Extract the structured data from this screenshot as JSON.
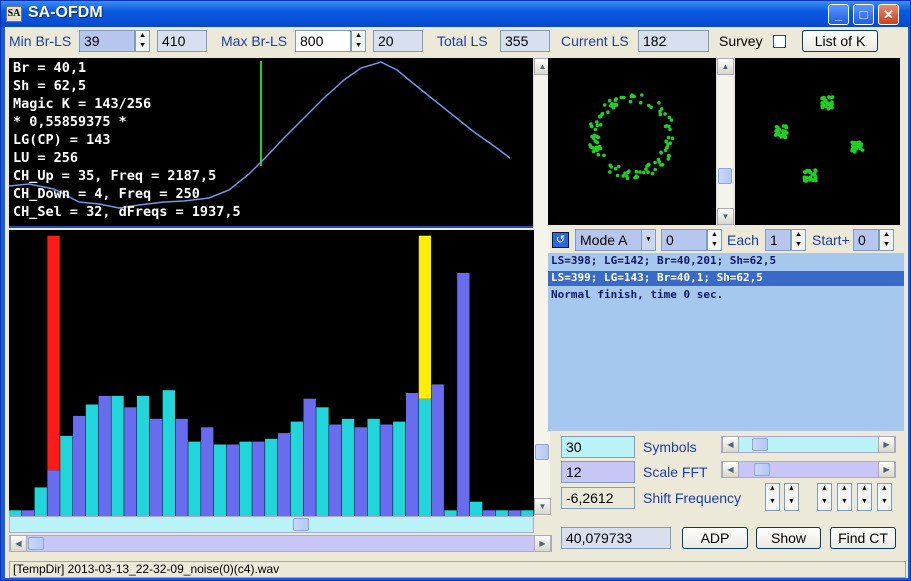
{
  "window": {
    "title": "SA-OFDM",
    "icon_text": "SA"
  },
  "toolbar": {
    "min_br_ls_label": "Min Br-LS",
    "min_br_ls_value": "39",
    "min_br_ls_extra": "410",
    "max_br_ls_label": "Max Br-LS",
    "max_br_ls_value": "800",
    "max_br_ls_extra": "20",
    "total_ls_label": "Total LS",
    "total_ls_value": "355",
    "current_ls_label": "Current LS",
    "current_ls_value": "182",
    "survey_label": "Survey",
    "list_k_label": "List of K"
  },
  "terminal": {
    "lines": [
      "Br = 40,1",
      "Sh = 62,5",
      "Magic K = 143/256",
      "* 0,55859375 *",
      "LG(CP) = 143",
      "LU = 256",
      "CH_Up = 35, Freq = 2187,5",
      "CH_Down = 4, Freq = 250",
      "CH_Sel = 32, dFreqs = 1937,5"
    ]
  },
  "spectrum": {
    "bars": [
      0.02,
      0.02,
      0.1,
      0.16,
      0.28,
      0.35,
      0.39,
      0.42,
      0.42,
      0.38,
      0.42,
      0.34,
      0.44,
      0.34,
      0.26,
      0.31,
      0.25,
      0.25,
      0.26,
      0.26,
      0.27,
      0.29,
      0.33,
      0.41,
      0.38,
      0.32,
      0.34,
      0.31,
      0.34,
      0.32,
      0.33,
      0.43,
      0.41,
      0.46,
      0.02,
      0.85,
      0.05,
      0.02,
      0.02,
      0.02,
      0.02
    ],
    "red_bar_index": 3,
    "red_level": 0.98,
    "yellow_bar_index": 32,
    "yellow_level": 0.98
  },
  "controls": {
    "mode_label": "Mode A",
    "mode_value": "0",
    "each_label": "Each",
    "each_value": "1",
    "start_label": "Start+",
    "start_value": "0"
  },
  "log": {
    "lines": [
      "LS=398; LG=142; Br=40,201; Sh=62,5",
      "LS=399; LG=143; Br=40,1; Sh=62,5",
      "Normal finish, time 0 sec."
    ],
    "selected_index": 1
  },
  "params": {
    "symbols_value": "30",
    "symbols_label": "Symbols",
    "scale_fft_value": "12",
    "scale_fft_label": "Scale FFT",
    "shift_freq_value": "-6,2612",
    "shift_freq_label": "Shift Frequency",
    "readout_value": "40,079733",
    "adp_label": "ADP",
    "show_label": "Show",
    "find_ct_label": "Find CT"
  },
  "status": {
    "text": "[TempDir] 2013-03-13_22-32-09_noise(0)(c4).wav"
  },
  "colors": {
    "accent_blue": "#6a6cf0",
    "accent_cyan": "#20d6d8",
    "red": "#ff1a1a",
    "yellow": "#ffee00",
    "curve": "#6f98e8",
    "marker": "#20d020"
  }
}
